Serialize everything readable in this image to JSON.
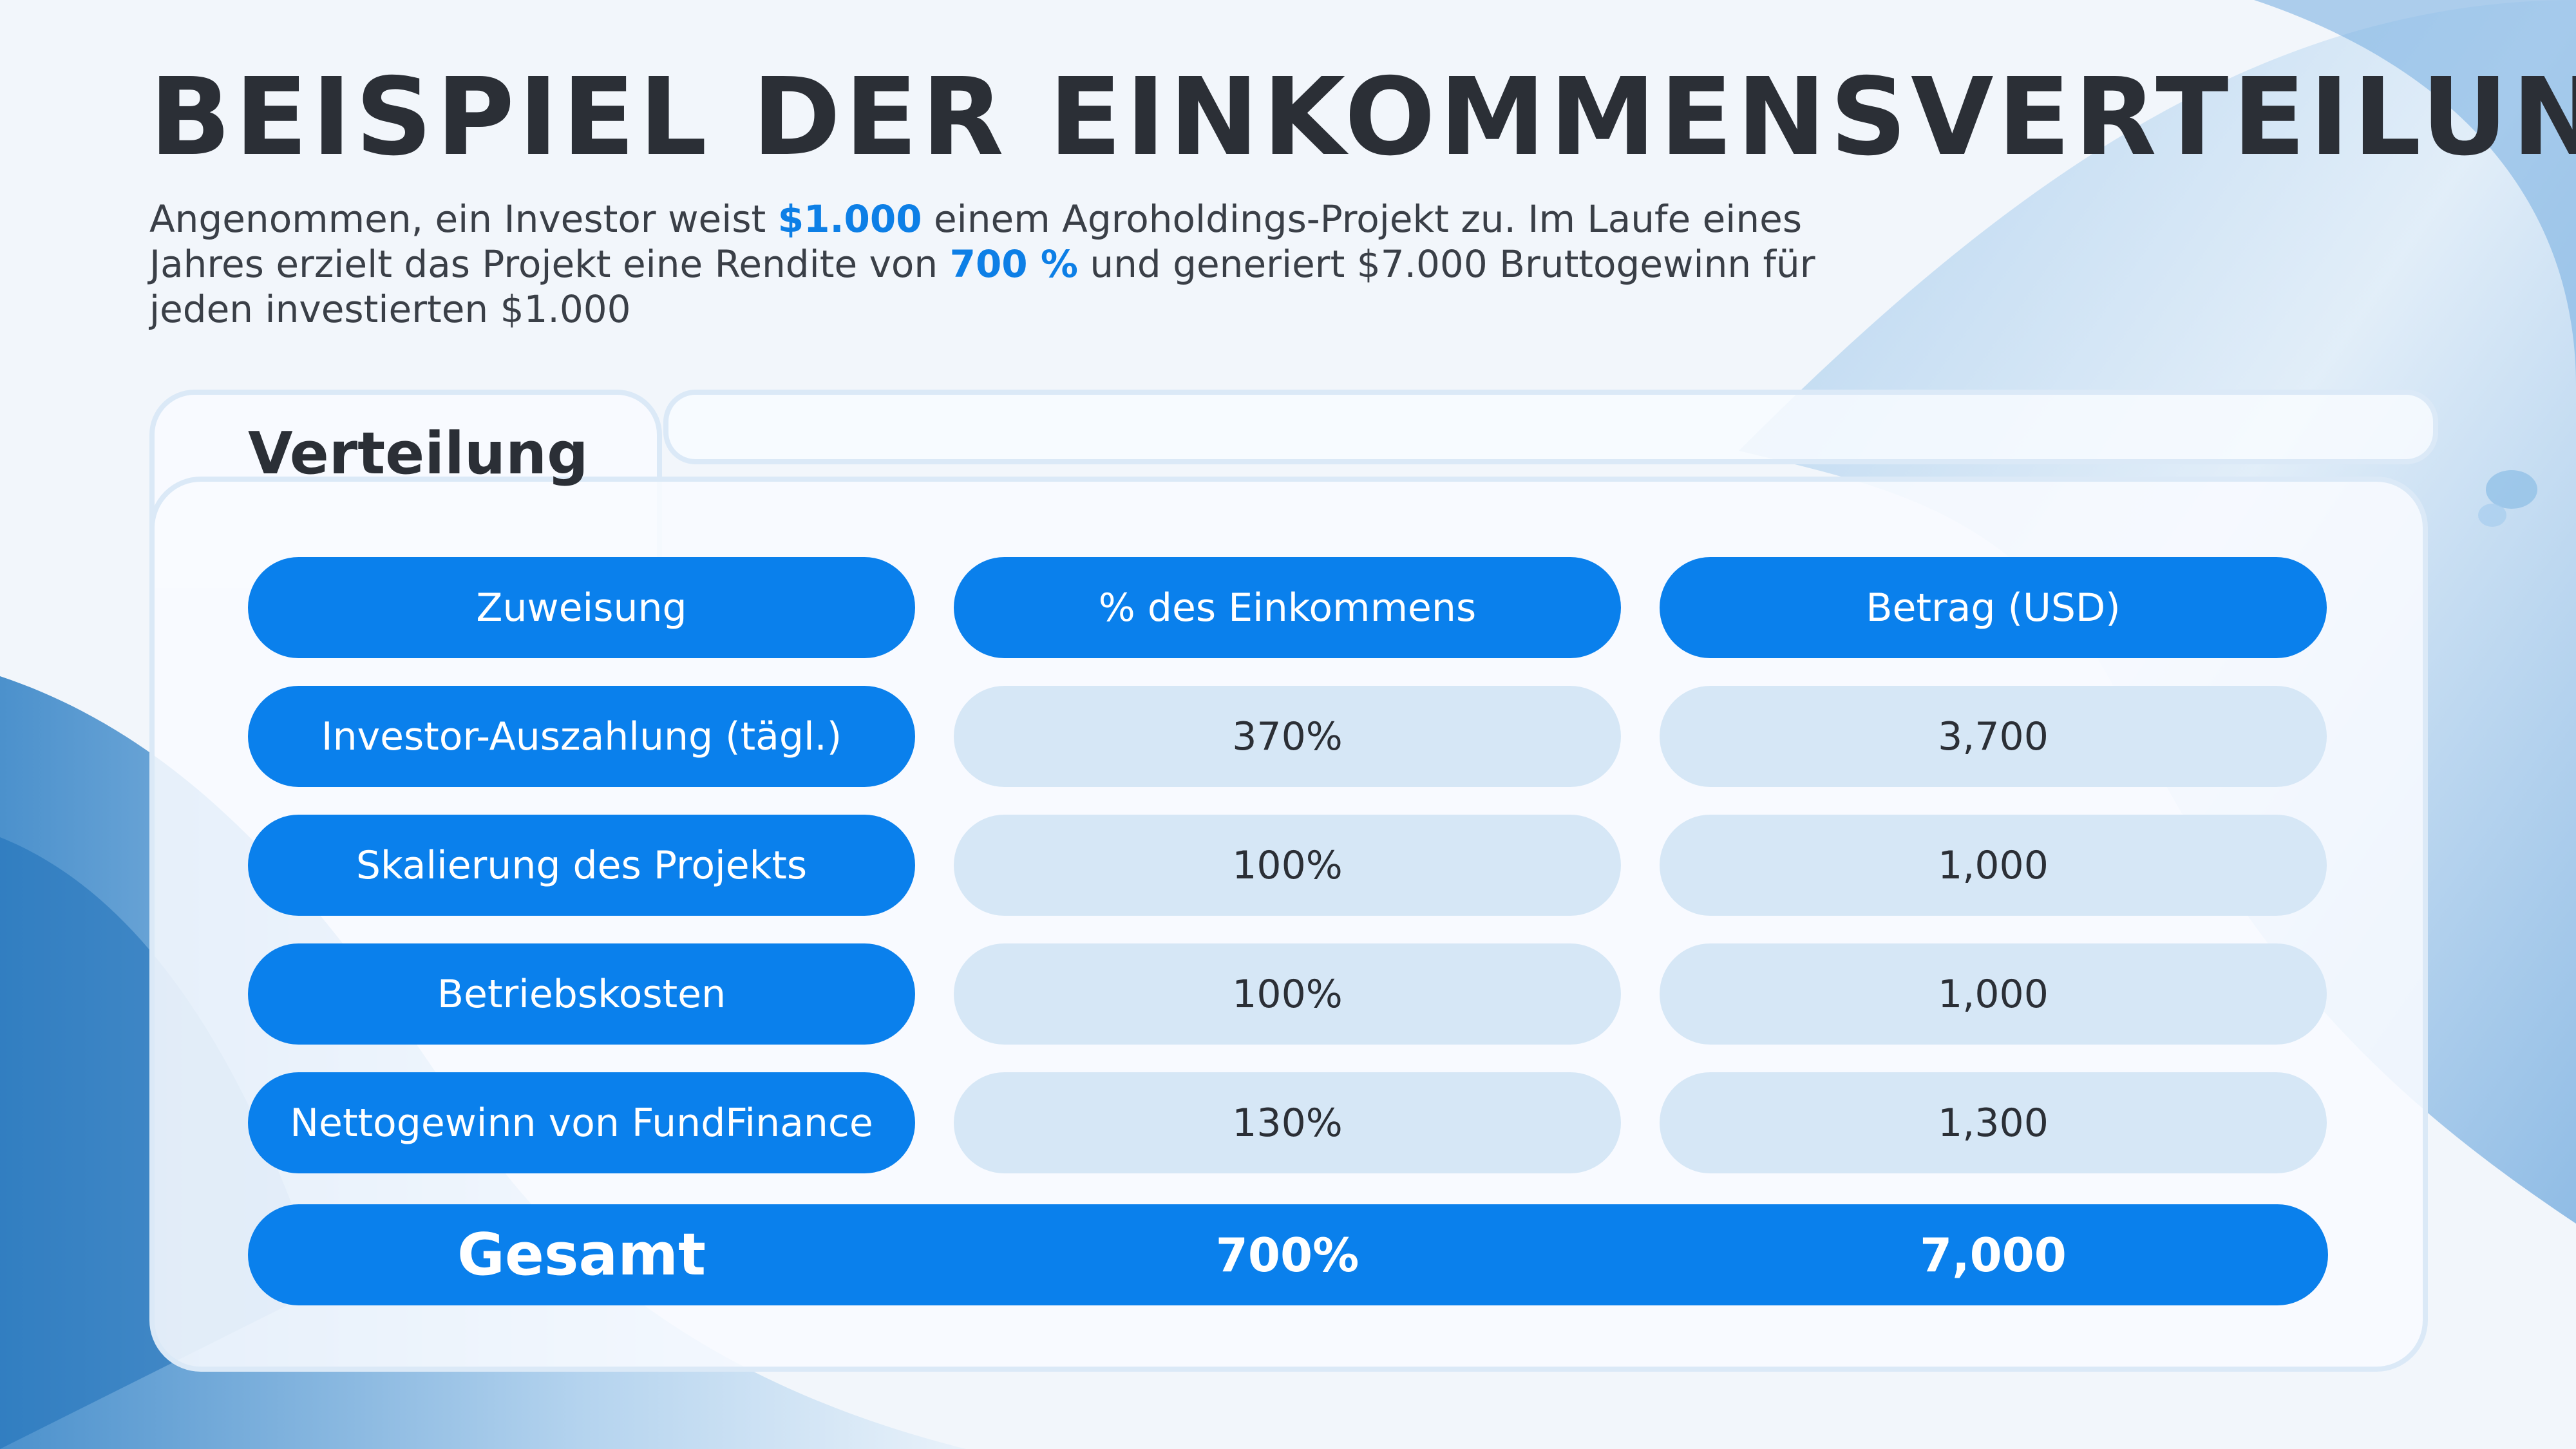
{
  "heading": {
    "title": "BEISPIEL DER EINKOMMENSVERTEILUNG",
    "intro_parts": {
      "p1": "Angenommen, ein Investor weist ",
      "amount": "$1.000",
      "p2": " einem Agroholdings-Projekt zu. Im Laufe eines Jahres erzielt das Projekt eine Rendite von ",
      "rate": "700 %",
      "p3": " und generiert $7.000 Bruttogewinn für jeden investierten $1.000"
    }
  },
  "panel": {
    "title": "Verteilung"
  },
  "table": {
    "headers": [
      "Zuweisung",
      "% des Einkommens",
      "Betrag (USD)"
    ],
    "rows": [
      {
        "label": "Investor-Auszahlung (tägl.)",
        "percent": "370%",
        "amount": "3,700"
      },
      {
        "label": "Skalierung des Projekts",
        "percent": "100%",
        "amount": "1,000"
      },
      {
        "label": "Betriebskosten",
        "percent": "100%",
        "amount": "1,000"
      },
      {
        "label": "Nettogewinn von FundFinance",
        "percent": "130%",
        "amount": "1,300"
      }
    ],
    "total": {
      "label": "Gesamt",
      "percent": "700%",
      "amount": "7,000"
    }
  },
  "colors": {
    "accent": "#0a80ec",
    "cell_light": "#d6e7f6",
    "text_dark": "#2b2f36"
  }
}
